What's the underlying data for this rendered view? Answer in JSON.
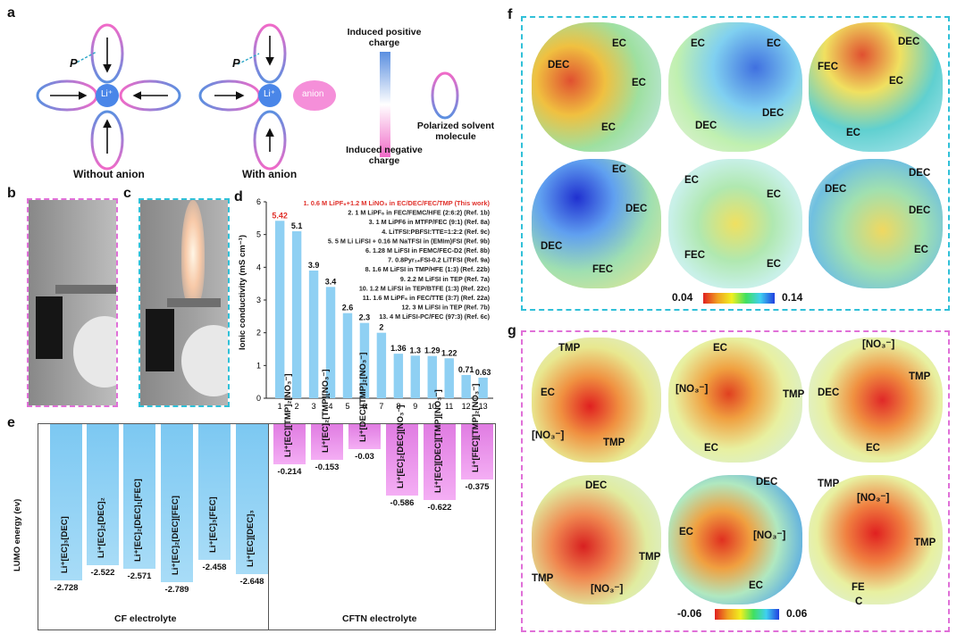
{
  "panels": {
    "a": {
      "label": "a",
      "p_vector": "P",
      "cation": "Li⁺",
      "anion": "anion",
      "caption_without": "Without anion",
      "caption_with": "With anion",
      "legend_positive": "Induced positive charge",
      "legend_negative": "Induced negative charge",
      "legend_solvent": "Polarized solvent molecule",
      "colors": {
        "positive": "#4a86d8",
        "negative": "#f06ac8",
        "li": "#4a86e8",
        "anion": "#f58fd9"
      }
    },
    "b": {
      "label": "b"
    },
    "c": {
      "label": "c"
    },
    "d": {
      "label": "d",
      "ylabel": "Ionic conductivity (mS cm⁻¹)"
    },
    "e": {
      "label": "e",
      "ylabel": "LUMO energy (ev)",
      "group_cf": "CF electrolyte",
      "group_cftn": "CFTN electrolyte",
      "cf_bars": [
        {
          "label": "Li⁺[EC]₃[DEC]",
          "value": "-2.728"
        },
        {
          "label": "Li⁺[EC]₂[DEC]₂",
          "value": "-2.522"
        },
        {
          "label": "Li⁺[EC]₂[DEC]₁[FEC]",
          "value": "-2.571"
        },
        {
          "label": "Li⁺[EC]₂[DEC][FEC]",
          "value": "-2.789"
        },
        {
          "label": "Li⁺[EC]₃[FEC]",
          "value": "-2.458"
        },
        {
          "label": "Li⁺[EC][DEC]₃",
          "value": "-2.648"
        }
      ],
      "cftn_bars": [
        {
          "label": "Li⁺[EC][TMP]₂[NO₃⁻]",
          "value": "-0.214"
        },
        {
          "label": "Li⁺[EC]₂[TMP][NO₃⁻]",
          "value": "-0.153"
        },
        {
          "label": "Li⁺[DEC][TMP]₂[NO₃⁻]",
          "value": "-0.03"
        },
        {
          "label": "Li⁺[EC]₂[DEC][NO₃⁻]",
          "value": "-0.586"
        },
        {
          "label": "Li⁺[EC][DEC][TMP][NO₃⁻]",
          "value": "-0.622"
        },
        {
          "label": "Li⁺[FEC][TMP]₂[NO₃⁻]",
          "value": "-0.375"
        }
      ]
    },
    "f": {
      "label": "f",
      "cbar_min": "0.04",
      "cbar_max": "0.14",
      "labels": {
        "m1": [
          "EC",
          "DEC",
          "EC",
          "EC"
        ],
        "m2": [
          "EC",
          "EC",
          "DEC",
          "DEC"
        ],
        "m3": [
          "DEC",
          "FEC",
          "EC",
          "EC"
        ],
        "m4": [
          "EC",
          "DEC",
          "DEC",
          "FEC"
        ],
        "m5": [
          "EC",
          "EC",
          "FEC",
          "EC"
        ],
        "m6": [
          "DEC",
          "DEC",
          "DEC",
          "EC"
        ]
      }
    },
    "g": {
      "label": "g",
      "cbar_min": "-0.06",
      "cbar_max": "0.06",
      "labels": {
        "m1": [
          "TMP",
          "EC",
          "[NO₃⁻]",
          "TMP"
        ],
        "m2": [
          "EC",
          "[NO₃⁻]",
          "TMP",
          "EC"
        ],
        "m3": [
          "[NO₃⁻]",
          "TMP",
          "DEC",
          "EC"
        ],
        "m4": [
          "DEC",
          "TMP",
          "TMP",
          "[NO₃⁻]"
        ],
        "m5": [
          "DEC",
          "EC",
          "[NO₃⁻]",
          "EC"
        ],
        "m6": [
          "TMP",
          "[NO₃⁻]",
          "TMP",
          "FE",
          "C"
        ]
      }
    }
  },
  "chart_data": {
    "type": "bar",
    "categories": [
      "1",
      "2",
      "3",
      "4",
      "5",
      "6",
      "7",
      "8",
      "9",
      "10",
      "11",
      "12",
      "13"
    ],
    "values": [
      5.42,
      5.1,
      3.9,
      3.4,
      2.6,
      2.3,
      2.0,
      1.36,
      1.3,
      1.29,
      1.22,
      0.71,
      0.63
    ],
    "value_labels": [
      "5.42",
      "5.1",
      "3.9",
      "3.4",
      "2.6",
      "2.3",
      "2",
      "1.36",
      "1.3",
      "1.29",
      "1.22",
      "0.71",
      "0.63"
    ],
    "ylabel": "Ionic conductivity (mS cm⁻¹)",
    "ylim": [
      0,
      6
    ],
    "yticks": [
      "0",
      "1",
      "2",
      "3",
      "4",
      "5",
      "6"
    ],
    "bar_color": "#8fd0f3",
    "highlight_color": "#e0302a",
    "legend": [
      "1. 0.6 M LiPF₆+1.2 M LiNO₃ in EC/DEC/FEC/TMP (This work)",
      "2. 1 M LiPF₆ in FEC/FEMC/HFE (2:6:2) (Ref. 1b)",
      "3. 1 M LiPF6 in MTFP/FEC (9:1) (Ref. 8a)",
      "4. LiTFSI:PBFSI:TTE=1:2:2 (Ref. 9c)",
      "5. 5 M Li LiFSI + 0.16 M NaTFSI in (EMIm)FSI (Ref. 9b)",
      "6. 1.28 M LiFSI in FEMC/FEC-D2 (Ref. 8b)",
      "7. 0.8Pyr₁₄FSI-0.2 LiTFSI (Ref. 9a)",
      "8. 1.6 M LiFSI in TMP/HFE (1:3) (Ref. 22b)",
      "9. 2.2 M LiFSI in TEP (Ref. 7a)",
      "10. 1.2 M LiFSI in TEP/BTFE (1:3) (Ref. 22c)",
      "11. 1.6 M LiPF₆ in FEC/TTE (3:7) (Ref. 22a)",
      "12. 3 M LiFSI in TEP (Ref. 7b)",
      "13. 4 M LiFSI-PC/FEC (97:3) (Ref. 6c)"
    ]
  }
}
